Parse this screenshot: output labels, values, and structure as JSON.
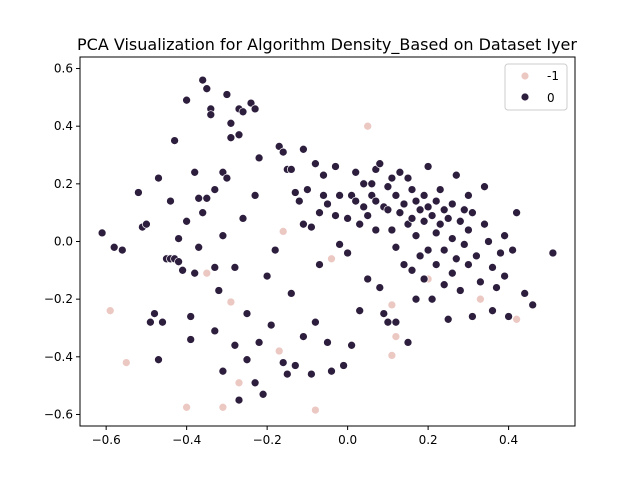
{
  "chart_data": {
    "type": "scatter",
    "title": "PCA Visualization for Algorithm Density_Based on Dataset Iyer",
    "xlabel": "",
    "ylabel": "",
    "xlim": [
      -0.665,
      0.565
    ],
    "ylim": [
      -0.64,
      0.64
    ],
    "x_ticks": [
      -0.6,
      -0.4,
      -0.2,
      0.0,
      0.2,
      0.4
    ],
    "x_tick_labels": [
      "−0.6",
      "−0.4",
      "−0.2",
      "0.0",
      "0.2",
      "0.4"
    ],
    "y_ticks": [
      -0.6,
      -0.4,
      -0.2,
      0.0,
      0.2,
      0.4,
      0.6
    ],
    "y_tick_labels": [
      "−0.6",
      "−0.4",
      "−0.2",
      "0.0",
      "0.2",
      "0.4",
      "0.6"
    ],
    "grid": false,
    "legend": {
      "placement": "top-right"
    },
    "series": [
      {
        "name": "-1",
        "color": "#ecc8c3",
        "points": [
          [
            -0.59,
            -0.24
          ],
          [
            -0.55,
            -0.42
          ],
          [
            -0.4,
            -0.575
          ],
          [
            -0.31,
            -0.575
          ],
          [
            -0.08,
            -0.585
          ],
          [
            -0.35,
            -0.11
          ],
          [
            -0.16,
            0.035
          ],
          [
            -0.27,
            -0.49
          ],
          [
            -0.17,
            -0.38
          ],
          [
            -0.04,
            -0.06
          ],
          [
            0.05,
            0.4
          ],
          [
            0.11,
            -0.22
          ],
          [
            0.11,
            -0.395
          ],
          [
            0.2,
            -0.13
          ],
          [
            0.33,
            -0.2
          ],
          [
            0.42,
            -0.27
          ],
          [
            0.12,
            -0.33
          ],
          [
            -0.29,
            -0.21
          ]
        ]
      },
      {
        "name": "0",
        "color": "#2d1e3e",
        "points": [
          [
            -0.61,
            0.03
          ],
          [
            -0.58,
            -0.02
          ],
          [
            -0.56,
            -0.03
          ],
          [
            -0.52,
            0.17
          ],
          [
            -0.51,
            0.05
          ],
          [
            -0.5,
            0.06
          ],
          [
            -0.49,
            -0.28
          ],
          [
            -0.48,
            -0.25
          ],
          [
            -0.47,
            0.22
          ],
          [
            -0.47,
            -0.41
          ],
          [
            -0.46,
            -0.28
          ],
          [
            -0.45,
            -0.06
          ],
          [
            -0.44,
            0.14
          ],
          [
            -0.44,
            -0.06
          ],
          [
            -0.43,
            -0.06
          ],
          [
            -0.43,
            0.35
          ],
          [
            -0.42,
            0.01
          ],
          [
            -0.42,
            -0.07
          ],
          [
            -0.41,
            -0.1
          ],
          [
            -0.4,
            0.49
          ],
          [
            -0.4,
            0.07
          ],
          [
            -0.39,
            -0.26
          ],
          [
            -0.39,
            -0.34
          ],
          [
            -0.38,
            0.24
          ],
          [
            -0.38,
            -0.11
          ],
          [
            -0.37,
            0.15
          ],
          [
            -0.37,
            -0.02
          ],
          [
            -0.36,
            0.56
          ],
          [
            -0.36,
            0.1
          ],
          [
            -0.35,
            0.53
          ],
          [
            -0.35,
            0.15
          ],
          [
            -0.34,
            0.46
          ],
          [
            -0.34,
            0.44
          ],
          [
            -0.33,
            0.18
          ],
          [
            -0.33,
            -0.09
          ],
          [
            -0.33,
            -0.31
          ],
          [
            -0.32,
            -0.17
          ],
          [
            -0.31,
            0.24
          ],
          [
            -0.31,
            0.02
          ],
          [
            -0.31,
            -0.45
          ],
          [
            -0.3,
            0.51
          ],
          [
            -0.3,
            0.22
          ],
          [
            -0.29,
            0.41
          ],
          [
            -0.29,
            0.36
          ],
          [
            -0.28,
            -0.09
          ],
          [
            -0.28,
            -0.36
          ],
          [
            -0.27,
            0.46
          ],
          [
            -0.27,
            0.37
          ],
          [
            -0.27,
            -0.55
          ],
          [
            -0.26,
            0.45
          ],
          [
            -0.26,
            0.08
          ],
          [
            -0.25,
            -0.25
          ],
          [
            -0.25,
            -0.41
          ],
          [
            -0.24,
            0.48
          ],
          [
            -0.23,
            0.46
          ],
          [
            -0.23,
            0.16
          ],
          [
            -0.23,
            -0.49
          ],
          [
            -0.22,
            0.29
          ],
          [
            -0.22,
            -0.35
          ],
          [
            -0.21,
            -0.53
          ],
          [
            -0.2,
            -0.12
          ],
          [
            -0.19,
            -0.29
          ],
          [
            -0.18,
            -0.03
          ],
          [
            -0.17,
            0.33
          ],
          [
            -0.16,
            0.31
          ],
          [
            -0.16,
            -0.42
          ],
          [
            -0.15,
            0.25
          ],
          [
            -0.15,
            -0.46
          ],
          [
            -0.14,
            0.25
          ],
          [
            -0.14,
            -0.18
          ],
          [
            -0.13,
            0.17
          ],
          [
            -0.13,
            -0.43
          ],
          [
            -0.12,
            0.14
          ],
          [
            -0.11,
            0.32
          ],
          [
            -0.11,
            0.06
          ],
          [
            -0.11,
            -0.33
          ],
          [
            -0.1,
            0.18
          ],
          [
            -0.09,
            0.05
          ],
          [
            -0.09,
            -0.46
          ],
          [
            -0.08,
            0.27
          ],
          [
            -0.08,
            -0.28
          ],
          [
            -0.07,
            0.1
          ],
          [
            -0.07,
            -0.08
          ],
          [
            -0.06,
            0.23
          ],
          [
            -0.06,
            0.16
          ],
          [
            -0.05,
            0.13
          ],
          [
            -0.05,
            -0.35
          ],
          [
            -0.04,
            -0.45
          ],
          [
            -0.03,
            0.26
          ],
          [
            -0.03,
            0.09
          ],
          [
            -0.02,
            0.16
          ],
          [
            -0.02,
            -0.01
          ],
          [
            -0.01,
            -0.43
          ],
          [
            0.0,
            0.08
          ],
          [
            0.0,
            -0.04
          ],
          [
            0.01,
            0.16
          ],
          [
            0.01,
            -0.36
          ],
          [
            0.02,
            0.24
          ],
          [
            0.02,
            0.14
          ],
          [
            0.03,
            0.06
          ],
          [
            0.03,
            -0.24
          ],
          [
            0.04,
            0.2
          ],
          [
            0.04,
            0.12
          ],
          [
            0.05,
            0.09
          ],
          [
            0.05,
            -0.13
          ],
          [
            0.06,
            0.2
          ],
          [
            0.06,
            0.16
          ],
          [
            0.07,
            0.25
          ],
          [
            0.07,
            0.14
          ],
          [
            0.07,
            0.04
          ],
          [
            0.08,
            0.27
          ],
          [
            0.08,
            -0.16
          ],
          [
            0.09,
            0.12
          ],
          [
            0.09,
            -0.25
          ],
          [
            0.1,
            0.19
          ],
          [
            0.1,
            0.11
          ],
          [
            0.1,
            -0.28
          ],
          [
            0.11,
            0.22
          ],
          [
            0.11,
            0.04
          ],
          [
            0.12,
            0.16
          ],
          [
            0.12,
            -0.02
          ],
          [
            0.12,
            -0.28
          ],
          [
            0.13,
            0.24
          ],
          [
            0.13,
            0.1
          ],
          [
            0.14,
            0.13
          ],
          [
            0.14,
            -0.08
          ],
          [
            0.15,
            0.22
          ],
          [
            0.15,
            0.06
          ],
          [
            0.15,
            -0.35
          ],
          [
            0.16,
            0.18
          ],
          [
            0.16,
            0.08
          ],
          [
            0.16,
            -0.1
          ],
          [
            0.17,
            0.14
          ],
          [
            0.17,
            0.02
          ],
          [
            0.17,
            -0.2
          ],
          [
            0.18,
            0.11
          ],
          [
            0.18,
            -0.05
          ],
          [
            0.19,
            0.16
          ],
          [
            0.19,
            0.07
          ],
          [
            0.19,
            -0.13
          ],
          [
            0.2,
            0.26
          ],
          [
            0.2,
            0.12
          ],
          [
            0.2,
            -0.03
          ],
          [
            0.21,
            0.09
          ],
          [
            0.21,
            -0.2
          ],
          [
            0.22,
            0.14
          ],
          [
            0.22,
            0.03
          ],
          [
            0.22,
            -0.08
          ],
          [
            0.23,
            0.18
          ],
          [
            0.23,
            0.06
          ],
          [
            0.24,
            0.11
          ],
          [
            0.24,
            -0.03
          ],
          [
            0.24,
            -0.15
          ],
          [
            0.25,
            0.08
          ],
          [
            0.25,
            -0.27
          ],
          [
            0.26,
            0.13
          ],
          [
            0.26,
            0.01
          ],
          [
            0.26,
            -0.11
          ],
          [
            0.27,
            0.23
          ],
          [
            0.27,
            -0.06
          ],
          [
            0.28,
            0.07
          ],
          [
            0.28,
            -0.17
          ],
          [
            0.29,
            0.11
          ],
          [
            0.29,
            -0.01
          ],
          [
            0.3,
            0.16
          ],
          [
            0.3,
            0.04
          ],
          [
            0.3,
            -0.08
          ],
          [
            0.31,
            0.1
          ],
          [
            0.31,
            -0.26
          ],
          [
            0.32,
            -0.05
          ],
          [
            0.33,
            -0.14
          ],
          [
            0.34,
            0.19
          ],
          [
            0.34,
            0.06
          ],
          [
            0.35,
            0.0
          ],
          [
            0.36,
            -0.09
          ],
          [
            0.36,
            -0.24
          ],
          [
            0.37,
            -0.16
          ],
          [
            0.38,
            -0.04
          ],
          [
            0.39,
            0.02
          ],
          [
            0.39,
            -0.12
          ],
          [
            0.4,
            -0.26
          ],
          [
            0.41,
            -0.03
          ],
          [
            0.42,
            0.1
          ],
          [
            0.44,
            -0.18
          ],
          [
            0.46,
            -0.22
          ],
          [
            0.51,
            -0.04
          ]
        ]
      }
    ]
  }
}
